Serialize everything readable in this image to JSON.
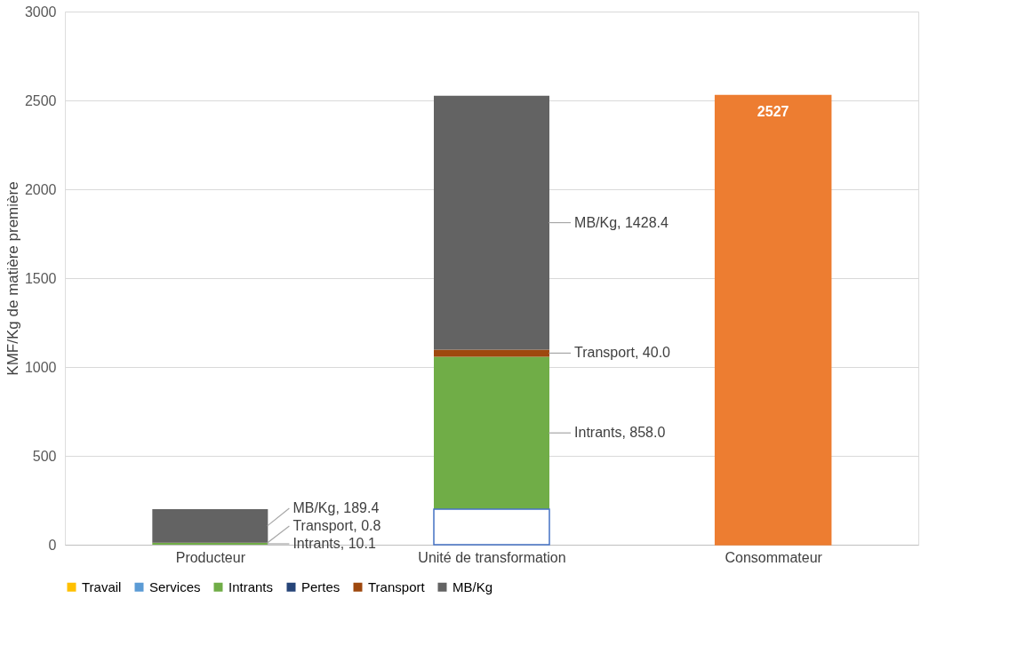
{
  "chart_data": {
    "type": "bar",
    "stacked": true,
    "ylabel": "KMF/Kg de matière première",
    "categories": [
      "Producteur",
      "Unité de transformation",
      "Consommateur"
    ],
    "series": [
      {
        "color": "#ffffff",
        "values": [
          null,
          200,
          null
        ]
      },
      {
        "name": "Travail",
        "color": "#ffc000",
        "values": [
          0,
          0,
          null
        ]
      },
      {
        "name": "Services",
        "color": "#5b9bd5",
        "values": [
          0,
          0,
          null
        ]
      },
      {
        "name": "Intrants",
        "color": "#70ad47",
        "values": [
          10.1,
          858.0,
          null
        ],
        "value_labels": [
          "Intrants, 10.1",
          "Intrants, 858.0",
          null
        ]
      },
      {
        "name": "Pertes",
        "color": "#264478",
        "values": [
          0,
          0,
          null
        ]
      },
      {
        "name": "Transport",
        "color": "#9e480e",
        "values": [
          0.8,
          40.0,
          null
        ],
        "value_labels": [
          "Transport, 0.8",
          "Transport, 40.0",
          null
        ]
      },
      {
        "name": "MB/Kg",
        "color": "#636363",
        "values": [
          189.4,
          1428.4,
          null
        ],
        "value_labels": [
          "MB/Kg, 189.4",
          "MB/Kg, 1428.4",
          null
        ]
      },
      {
        "color": "#ed7d31",
        "values": [
          null,
          null,
          2527
        ],
        "value_labels": [
          null,
          null,
          "2527"
        ]
      }
    ],
    "ylim": [
      0,
      3000
    ],
    "yticks": [
      0,
      500,
      1000,
      1500,
      2000,
      2500,
      3000
    ],
    "grid": "y",
    "legend": "bottom"
  }
}
